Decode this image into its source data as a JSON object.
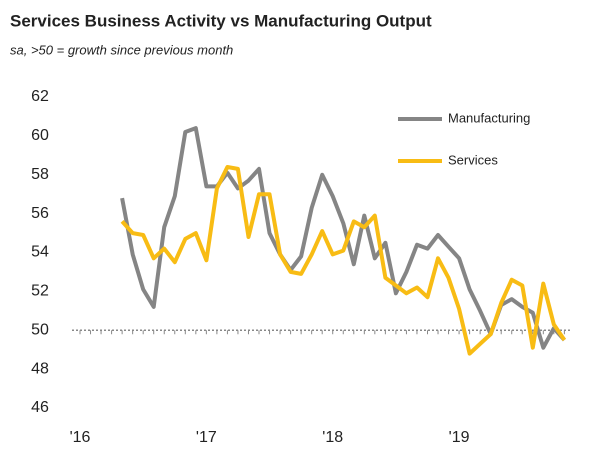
{
  "chart_data": {
    "type": "line",
    "title": "Services Business Activity vs Manufacturing Output",
    "subtitle": "sa, >50 = growth since previous month",
    "categories": [
      "'16",
      null,
      null,
      null,
      null,
      null,
      null,
      null,
      null,
      null,
      null,
      null,
      "'17",
      null,
      null,
      null,
      null,
      null,
      null,
      null,
      null,
      null,
      null,
      null,
      "'18",
      null,
      null,
      null,
      null,
      null,
      null,
      null,
      null,
      null,
      null,
      null,
      "'19",
      null,
      null,
      null,
      null,
      null,
      null,
      null,
      null,
      null,
      null
    ],
    "series": [
      {
        "name": "Manufacturing",
        "color": "#858585",
        "values": [
          null,
          null,
          null,
          null,
          56.8,
          53.9,
          52.1,
          51.2,
          55.3,
          56.9,
          60.2,
          60.4,
          57.4,
          57.4,
          58.1,
          57.3,
          57.7,
          58.3,
          55.0,
          53.9,
          53.1,
          53.8,
          56.3,
          58.0,
          56.9,
          55.5,
          53.4,
          55.9,
          53.7,
          54.5,
          51.9,
          53.0,
          54.4,
          54.2,
          54.9,
          54.3,
          53.7,
          52.1,
          51.0,
          49.8,
          51.3,
          51.6,
          51.2,
          50.9,
          49.1,
          50.1,
          49.5
        ]
      },
      {
        "name": "Services",
        "color": "#f8bc14",
        "values": [
          null,
          null,
          null,
          null,
          55.6,
          55.0,
          54.9,
          53.7,
          54.2,
          53.5,
          54.7,
          55.0,
          53.6,
          57.3,
          58.4,
          58.3,
          54.8,
          57.0,
          57.0,
          53.9,
          53.0,
          52.9,
          53.9,
          55.1,
          53.9,
          54.1,
          55.6,
          55.3,
          55.9,
          52.7,
          52.3,
          51.9,
          52.2,
          51.7,
          53.7,
          52.7,
          51.1,
          48.8,
          49.3,
          49.8,
          51.4,
          52.6,
          52.3,
          49.1,
          52.4,
          50.3,
          49.5
        ]
      }
    ],
    "ylim": [
      46,
      62
    ],
    "yticks": [
      46,
      48,
      50,
      52,
      54,
      56,
      58,
      60,
      62
    ],
    "hline": 50,
    "grid": false,
    "legend": "top-right"
  }
}
